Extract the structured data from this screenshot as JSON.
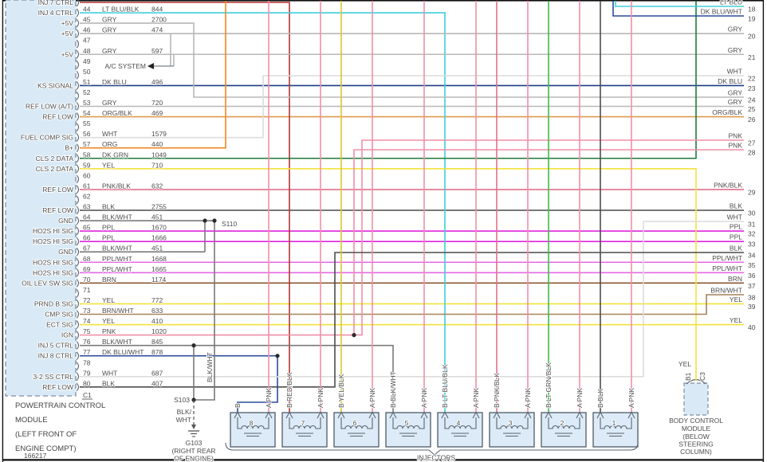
{
  "page": {
    "diagram_number": "166217"
  },
  "pcm": {
    "title_lines": [
      "POWERTRAIN CONTROL",
      "MODULE",
      "(LEFT FRONT OF",
      "ENGINE COMPT)"
    ],
    "connector_label": "C1",
    "pins": [
      {
        "num": "",
        "label": "INJ 7 CTRL",
        "color": "",
        "circuit": ""
      },
      {
        "num": "44",
        "label": "INJ 4 CTRL",
        "color": "LT BLU/BLK",
        "circuit": "844"
      },
      {
        "num": "45",
        "label": "+5V",
        "color": "GRY",
        "circuit": "2700"
      },
      {
        "num": "46",
        "label": "+5V",
        "color": "GRY",
        "circuit": "474"
      },
      {
        "num": "47",
        "label": "",
        "color": "",
        "circuit": ""
      },
      {
        "num": "48",
        "label": "+5V",
        "color": "GRY",
        "circuit": "597"
      },
      {
        "num": "49",
        "label": "",
        "color": "",
        "circuit": ""
      },
      {
        "num": "50",
        "label": "",
        "color": "",
        "circuit": ""
      },
      {
        "num": "51",
        "label": "KS SIGNAL",
        "color": "DK BLU",
        "circuit": "496"
      },
      {
        "num": "52",
        "label": "",
        "color": "",
        "circuit": ""
      },
      {
        "num": "53",
        "label": "REF LOW (A/T)",
        "color": "GRY",
        "circuit": "720"
      },
      {
        "num": "54",
        "label": "REF LOW",
        "color": "ORG/BLK",
        "circuit": "469"
      },
      {
        "num": "55",
        "label": "",
        "color": "",
        "circuit": ""
      },
      {
        "num": "56",
        "label": "FUEL COMP SIG",
        "color": "WHT",
        "circuit": "1579"
      },
      {
        "num": "57",
        "label": "B+",
        "color": "ORG",
        "circuit": "440"
      },
      {
        "num": "58",
        "label": "CLS 2 DATA",
        "color": "DK GRN",
        "circuit": "1049"
      },
      {
        "num": "59",
        "label": "CLS 2 DATA",
        "color": "YEL",
        "circuit": "710"
      },
      {
        "num": "60",
        "label": "",
        "color": "",
        "circuit": ""
      },
      {
        "num": "61",
        "label": "REF LOW",
        "color": "PNK/BLK",
        "circuit": "632"
      },
      {
        "num": "62",
        "label": "",
        "color": "",
        "circuit": ""
      },
      {
        "num": "63",
        "label": "REF LOW",
        "color": "BLK",
        "circuit": "2755"
      },
      {
        "num": "64",
        "label": "GND",
        "color": "BLK/WHT",
        "circuit": "451"
      },
      {
        "num": "65",
        "label": "HO2S HI SIG",
        "color": "PPL",
        "circuit": "1670"
      },
      {
        "num": "66",
        "label": "HO2S HI SIG",
        "color": "PPL",
        "circuit": "1666"
      },
      {
        "num": "67",
        "label": "GND",
        "color": "BLK/WHT",
        "circuit": "451"
      },
      {
        "num": "68",
        "label": "HO2S HI SIG",
        "color": "PPL/WHT",
        "circuit": "1668"
      },
      {
        "num": "69",
        "label": "HO2S HI SIG",
        "color": "PPL/WHT",
        "circuit": "1665"
      },
      {
        "num": "70",
        "label": "OIL LEV SW SIG",
        "color": "BRN",
        "circuit": "1174"
      },
      {
        "num": "71",
        "label": "",
        "color": "",
        "circuit": ""
      },
      {
        "num": "72",
        "label": "PRND B SIG",
        "color": "YEL",
        "circuit": "772"
      },
      {
        "num": "73",
        "label": "CMP SIG",
        "color": "BRN/WHT",
        "circuit": "633"
      },
      {
        "num": "74",
        "label": "ECT SIG",
        "color": "YEL",
        "circuit": "410"
      },
      {
        "num": "75",
        "label": "IGN",
        "color": "PNK",
        "circuit": "1020"
      },
      {
        "num": "76",
        "label": "INJ 5 CTRL",
        "color": "BLK/WHT",
        "circuit": "845"
      },
      {
        "num": "77",
        "label": "INJ 8 CTRL",
        "color": "DK BLU/WHT",
        "circuit": "878"
      },
      {
        "num": "78",
        "label": "",
        "color": "",
        "circuit": ""
      },
      {
        "num": "79",
        "label": "3-2 SS CTRL",
        "color": "WHT",
        "circuit": "687"
      },
      {
        "num": "80",
        "label": "REF LOW",
        "color": "BLK",
        "circuit": "407"
      }
    ]
  },
  "ac_system": {
    "label": "A/C SYSTEM"
  },
  "right_edge": {
    "rows": [
      {
        "num": "18",
        "color": "LT BLU"
      },
      {
        "num": "19",
        "color": "DK BLU/WHT"
      },
      {
        "num": "20",
        "color": "GRY"
      },
      {
        "num": "21",
        "color": "GRY"
      },
      {
        "num": "22",
        "color": "WHT"
      },
      {
        "num": "23",
        "color": "DK BLU"
      },
      {
        "num": "24",
        "color": "GRY"
      },
      {
        "num": "25",
        "color": "GRY"
      },
      {
        "num": "26",
        "color": "ORG/BLK"
      },
      {
        "num": "27",
        "color": "PNK"
      },
      {
        "num": "28",
        "color": "PNK"
      },
      {
        "num": "29",
        "color": "PNK/BLK"
      },
      {
        "num": "30",
        "color": "BLK"
      },
      {
        "num": "31",
        "color": "WHT"
      },
      {
        "num": "32",
        "color": "PPL"
      },
      {
        "num": "33",
        "color": "PPL"
      },
      {
        "num": "34",
        "color": "BLK"
      },
      {
        "num": "35",
        "color": "PPL/WHT"
      },
      {
        "num": "36",
        "color": "PPL/WHT"
      },
      {
        "num": "37",
        "color": "BRN"
      },
      {
        "num": "38",
        "color": "BRN/WHT"
      },
      {
        "num": "39",
        "color": "YEL"
      },
      {
        "num": "40",
        "color": "YEL"
      }
    ]
  },
  "splices": {
    "s110_label": "S110",
    "s103_label": "S103",
    "s103_wire_lines": [
      "BLK/",
      "WHT"
    ],
    "s110_branch_label": "BLK/WHT",
    "ground_label": "G103",
    "ground_loc_lines": [
      "(RIGHT REAR",
      "OF ENGINE)"
    ]
  },
  "injectors": {
    "group_label": "INJECTORS",
    "items": [
      {
        "num": "8",
        "b_label": "B",
        "b_color": "DK BLU/WHT",
        "a_label": "A PNK"
      },
      {
        "num": "7",
        "b_label": "B RED/BLK",
        "b_color": "RED/BLK",
        "a_label": "A PNK"
      },
      {
        "num": "6",
        "b_label": "B YEL/BLK",
        "b_color": "YEL/BLK",
        "a_label": "A PNK"
      },
      {
        "num": "5",
        "b_label": "B BLK/WHT",
        "b_color": "BLK/WHT",
        "a_label": "A PNK"
      },
      {
        "num": "4",
        "b_label": "B LT BLU/BLK",
        "b_color": "LT BLU/BLK",
        "a_label": "A PNK"
      },
      {
        "num": "3",
        "b_label": "B PNK/BLK",
        "b_color": "PNK/BLK",
        "a_label": "A PNK"
      },
      {
        "num": "2",
        "b_label": "B LT GRN/BLK",
        "b_color": "LT GRN/BLK",
        "a_label": "A PNK"
      },
      {
        "num": "1",
        "b_label": "B BLK",
        "b_color": "BLK",
        "a_label": "A PNK"
      }
    ]
  },
  "bcm": {
    "wire_label": "YEL",
    "pin_left": "B1",
    "pin_right": "C3",
    "title_lines": [
      "BODY CONTROL",
      "MODULE",
      "(BELOW",
      "STEERING",
      "COLUMN)"
    ]
  },
  "wire_colors": {
    "LT BLU/BLK": "#3ECFDB",
    "LT BLU": "#3ECFDB",
    "GRY": "#B8B8B8",
    "DK BLU": "#1F3C88",
    "DK BLU/WHT": "#2C4C9C",
    "ORG/BLK": "#DE9A4A",
    "WHT": "#DCDCDC",
    "ORG": "#F0871E",
    "DK GRN": "#1F7A38",
    "YEL": "#F4E23C",
    "PNK/BLK": "#E0718C",
    "BLK": "#4C4C4C",
    "BLK/WHT": "#7A7A7A",
    "PPL": "#DE25DE",
    "PPL/WHT": "#E668E6",
    "BRN": "#8A5A30",
    "BRN/WHT": "#A5825A",
    "PNK": "#F08FA6",
    "RED/BLK": "#B23535",
    "YEL/BLK": "#D9C62E",
    "LT GRN/BLK": "#3FBB4A",
    "module_fill": "#D9EAF6",
    "text": "#4d4d4d",
    "border": "#000000"
  }
}
